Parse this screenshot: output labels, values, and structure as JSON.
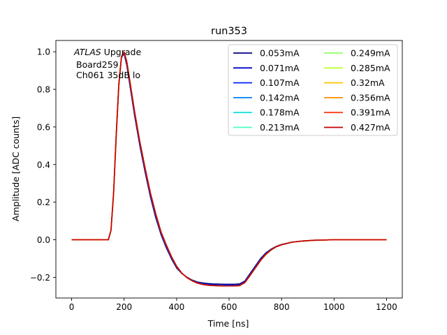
{
  "chart_data": {
    "type": "line",
    "title": "run353",
    "xlabel": "Time [ns]",
    "ylabel": "Amplitude [ADC counts]",
    "xlim": [
      -60,
      1260
    ],
    "ylim": [
      -0.31,
      1.06
    ],
    "xticks": [
      0,
      200,
      400,
      600,
      800,
      1000,
      1200
    ],
    "xtick_labels": [
      "0",
      "200",
      "400",
      "600",
      "800",
      "1000",
      "1200"
    ],
    "yticks": [
      -0.2,
      0.0,
      0.2,
      0.4,
      0.6,
      0.8,
      1.0
    ],
    "ytick_labels": [
      "−0.2",
      "0.0",
      "0.2",
      "0.4",
      "0.6",
      "0.8",
      "1.0"
    ],
    "grid": false,
    "legend_position": "top-right",
    "legend_columns": 2,
    "annotation": {
      "italic": "ATLAS",
      "rest": " Upgrade",
      "line2": "Board259",
      "line3": "Ch061 35dB lo"
    },
    "x": [
      0,
      50,
      100,
      140,
      150,
      160,
      170,
      180,
      190,
      200,
      210,
      220,
      240,
      260,
      280,
      300,
      320,
      340,
      360,
      380,
      400,
      420,
      440,
      460,
      480,
      500,
      520,
      540,
      560,
      580,
      600,
      620,
      640,
      660,
      680,
      700,
      720,
      740,
      760,
      780,
      800,
      840,
      880,
      920,
      1000,
      1100,
      1200
    ],
    "series": [
      {
        "name": "0.053mA",
        "color": "#00007f",
        "values": [
          0.0,
          0.0,
          0.0,
          0.0,
          0.05,
          0.25,
          0.55,
          0.82,
          0.97,
          0.99,
          0.93,
          0.84,
          0.66,
          0.5,
          0.36,
          0.23,
          0.12,
          0.03,
          -0.04,
          -0.1,
          -0.15,
          -0.18,
          -0.2,
          -0.215,
          -0.225,
          -0.23,
          -0.233,
          -0.235,
          -0.236,
          -0.237,
          -0.237,
          -0.237,
          -0.235,
          -0.22,
          -0.18,
          -0.14,
          -0.1,
          -0.07,
          -0.05,
          -0.035,
          -0.025,
          -0.012,
          -0.006,
          -0.003,
          0.0,
          0.0,
          0.0
        ]
      },
      {
        "name": "0.071mA",
        "color": "#0000c8",
        "values": [
          0.0,
          0.0,
          0.0,
          0.0,
          0.05,
          0.25,
          0.56,
          0.83,
          0.97,
          0.995,
          0.94,
          0.85,
          0.67,
          0.51,
          0.37,
          0.24,
          0.13,
          0.035,
          -0.035,
          -0.095,
          -0.145,
          -0.178,
          -0.2,
          -0.217,
          -0.228,
          -0.234,
          -0.238,
          -0.24,
          -0.241,
          -0.242,
          -0.242,
          -0.242,
          -0.24,
          -0.224,
          -0.185,
          -0.145,
          -0.105,
          -0.075,
          -0.052,
          -0.036,
          -0.026,
          -0.013,
          -0.007,
          -0.003,
          0.0,
          0.0,
          0.0
        ]
      },
      {
        "name": "0.107mA",
        "color": "#0022ff",
        "values": [
          0.0,
          0.0,
          0.0,
          0.0,
          0.05,
          0.25,
          0.56,
          0.83,
          0.975,
          0.997,
          0.945,
          0.855,
          0.675,
          0.515,
          0.375,
          0.245,
          0.135,
          0.04,
          -0.03,
          -0.092,
          -0.143,
          -0.178,
          -0.201,
          -0.218,
          -0.23,
          -0.236,
          -0.24,
          -0.242,
          -0.243,
          -0.244,
          -0.244,
          -0.244,
          -0.242,
          -0.226,
          -0.188,
          -0.148,
          -0.108,
          -0.077,
          -0.053,
          -0.037,
          -0.027,
          -0.013,
          -0.007,
          -0.003,
          0.0,
          0.0,
          0.0
        ]
      },
      {
        "name": "0.142mA",
        "color": "#0080ff",
        "values": [
          0.0,
          0.0,
          0.0,
          0.0,
          0.05,
          0.25,
          0.56,
          0.83,
          0.975,
          0.998,
          0.947,
          0.858,
          0.678,
          0.518,
          0.378,
          0.248,
          0.138,
          0.042,
          -0.028,
          -0.09,
          -0.142,
          -0.178,
          -0.202,
          -0.219,
          -0.231,
          -0.237,
          -0.241,
          -0.243,
          -0.244,
          -0.245,
          -0.245,
          -0.245,
          -0.243,
          -0.227,
          -0.189,
          -0.149,
          -0.109,
          -0.078,
          -0.054,
          -0.037,
          -0.027,
          -0.013,
          -0.007,
          -0.003,
          0.0,
          0.0,
          0.0
        ]
      },
      {
        "name": "0.178mA",
        "color": "#15e0e0",
        "values": [
          0.0,
          0.0,
          0.0,
          0.0,
          0.05,
          0.25,
          0.56,
          0.83,
          0.975,
          0.998,
          0.948,
          0.86,
          0.68,
          0.52,
          0.38,
          0.25,
          0.14,
          0.044,
          -0.026,
          -0.089,
          -0.141,
          -0.178,
          -0.202,
          -0.219,
          -0.231,
          -0.238,
          -0.242,
          -0.244,
          -0.245,
          -0.246,
          -0.246,
          -0.246,
          -0.244,
          -0.228,
          -0.19,
          -0.15,
          -0.11,
          -0.078,
          -0.054,
          -0.037,
          -0.027,
          -0.013,
          -0.007,
          -0.003,
          0.0,
          0.0,
          0.0
        ]
      },
      {
        "name": "0.213mA",
        "color": "#4dffc1",
        "values": [
          0.0,
          0.0,
          0.0,
          0.0,
          0.05,
          0.25,
          0.56,
          0.83,
          0.975,
          0.998,
          0.948,
          0.86,
          0.68,
          0.52,
          0.38,
          0.25,
          0.14,
          0.044,
          -0.026,
          -0.089,
          -0.141,
          -0.178,
          -0.202,
          -0.219,
          -0.231,
          -0.238,
          -0.242,
          -0.244,
          -0.245,
          -0.246,
          -0.246,
          -0.246,
          -0.244,
          -0.228,
          -0.19,
          -0.15,
          -0.11,
          -0.078,
          -0.054,
          -0.037,
          -0.027,
          -0.013,
          -0.007,
          -0.003,
          0.0,
          0.0,
          0.0
        ]
      },
      {
        "name": "0.249mA",
        "color": "#90ff66",
        "values": [
          0.0,
          0.0,
          0.0,
          0.0,
          0.05,
          0.25,
          0.56,
          0.83,
          0.975,
          0.998,
          0.948,
          0.86,
          0.68,
          0.52,
          0.38,
          0.25,
          0.14,
          0.044,
          -0.026,
          -0.089,
          -0.141,
          -0.178,
          -0.202,
          -0.219,
          -0.231,
          -0.238,
          -0.242,
          -0.244,
          -0.245,
          -0.246,
          -0.246,
          -0.246,
          -0.244,
          -0.228,
          -0.19,
          -0.15,
          -0.11,
          -0.078,
          -0.054,
          -0.037,
          -0.027,
          -0.013,
          -0.007,
          -0.003,
          0.0,
          0.0,
          0.0
        ]
      },
      {
        "name": "0.285mA",
        "color": "#c1ff34",
        "values": [
          0.0,
          0.0,
          0.0,
          0.0,
          0.05,
          0.25,
          0.56,
          0.83,
          0.975,
          0.998,
          0.948,
          0.86,
          0.68,
          0.52,
          0.38,
          0.25,
          0.14,
          0.044,
          -0.026,
          -0.089,
          -0.141,
          -0.178,
          -0.202,
          -0.219,
          -0.231,
          -0.238,
          -0.242,
          -0.244,
          -0.245,
          -0.246,
          -0.246,
          -0.246,
          -0.244,
          -0.228,
          -0.19,
          -0.15,
          -0.11,
          -0.078,
          -0.054,
          -0.037,
          -0.027,
          -0.013,
          -0.007,
          -0.003,
          0.0,
          0.0,
          0.0
        ]
      },
      {
        "name": "0.32mA",
        "color": "#ffc400",
        "values": [
          0.0,
          0.0,
          0.0,
          0.0,
          0.05,
          0.25,
          0.56,
          0.83,
          0.975,
          0.998,
          0.948,
          0.86,
          0.68,
          0.52,
          0.38,
          0.25,
          0.14,
          0.044,
          -0.026,
          -0.089,
          -0.141,
          -0.178,
          -0.202,
          -0.219,
          -0.231,
          -0.238,
          -0.242,
          -0.244,
          -0.245,
          -0.246,
          -0.246,
          -0.246,
          -0.244,
          -0.228,
          -0.19,
          -0.15,
          -0.11,
          -0.078,
          -0.054,
          -0.037,
          -0.027,
          -0.013,
          -0.007,
          -0.003,
          0.0,
          0.0,
          0.0
        ]
      },
      {
        "name": "0.356mA",
        "color": "#ff8c00",
        "values": [
          0.0,
          0.0,
          0.0,
          0.0,
          0.05,
          0.25,
          0.56,
          0.83,
          0.975,
          0.998,
          0.948,
          0.86,
          0.68,
          0.52,
          0.38,
          0.25,
          0.14,
          0.044,
          -0.026,
          -0.089,
          -0.141,
          -0.178,
          -0.202,
          -0.219,
          -0.231,
          -0.238,
          -0.242,
          -0.244,
          -0.245,
          -0.246,
          -0.246,
          -0.246,
          -0.244,
          -0.228,
          -0.19,
          -0.15,
          -0.11,
          -0.078,
          -0.054,
          -0.037,
          -0.027,
          -0.013,
          -0.007,
          -0.003,
          0.0,
          0.0,
          0.0
        ]
      },
      {
        "name": "0.391mA",
        "color": "#ff3b1a",
        "values": [
          0.0,
          0.0,
          0.0,
          0.0,
          0.05,
          0.25,
          0.56,
          0.83,
          0.975,
          0.998,
          0.948,
          0.86,
          0.68,
          0.52,
          0.38,
          0.25,
          0.14,
          0.044,
          -0.026,
          -0.089,
          -0.141,
          -0.178,
          -0.202,
          -0.219,
          -0.231,
          -0.238,
          -0.242,
          -0.244,
          -0.245,
          -0.246,
          -0.246,
          -0.246,
          -0.244,
          -0.228,
          -0.19,
          -0.15,
          -0.11,
          -0.078,
          -0.054,
          -0.037,
          -0.027,
          -0.013,
          -0.007,
          -0.003,
          0.0,
          0.0,
          0.0
        ]
      },
      {
        "name": "0.427mA",
        "color": "#c80000",
        "values": [
          0.0,
          0.0,
          0.0,
          0.0,
          0.05,
          0.25,
          0.56,
          0.83,
          0.975,
          0.998,
          0.948,
          0.86,
          0.68,
          0.52,
          0.38,
          0.25,
          0.14,
          0.044,
          -0.026,
          -0.089,
          -0.141,
          -0.178,
          -0.202,
          -0.219,
          -0.231,
          -0.238,
          -0.242,
          -0.244,
          -0.245,
          -0.246,
          -0.246,
          -0.246,
          -0.244,
          -0.228,
          -0.19,
          -0.15,
          -0.11,
          -0.078,
          -0.054,
          -0.037,
          -0.027,
          -0.013,
          -0.007,
          -0.003,
          0.0,
          0.0,
          0.0
        ]
      }
    ]
  }
}
